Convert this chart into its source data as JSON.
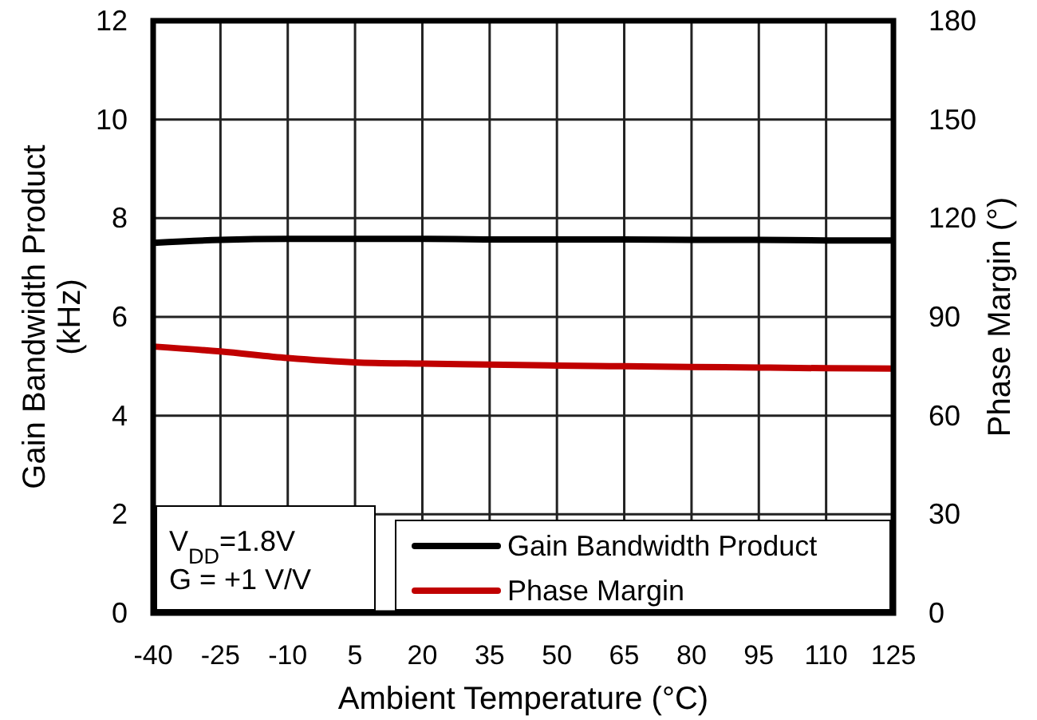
{
  "chart_data": {
    "type": "line",
    "xlabel": "Ambient Temperature (°C)",
    "ylabel": "Gain Bandwidth Product\n(kHz)",
    "y2label": "Phase Margin (°)",
    "x": [
      -40,
      -25,
      -10,
      5,
      20,
      35,
      50,
      65,
      80,
      95,
      110,
      125
    ],
    "series": [
      {
        "name": "Gain Bandwidth Product",
        "color": "#000000",
        "values": [
          7.5,
          7.56,
          7.58,
          7.58,
          7.58,
          7.57,
          7.57,
          7.57,
          7.56,
          7.56,
          7.55,
          7.55
        ]
      },
      {
        "name": "Phase Margin",
        "color": "#c00000",
        "axis": "y2",
        "values": [
          81,
          79.5,
          77.5,
          76.2,
          75.8,
          75.5,
          75.2,
          75,
          74.8,
          74.6,
          74.4,
          74.3
        ]
      }
    ],
    "xlim": [
      -40,
      125
    ],
    "xticks": [
      -40,
      -25,
      -10,
      5,
      20,
      35,
      50,
      65,
      80,
      95,
      110,
      125
    ],
    "ylim": [
      0,
      12
    ],
    "yticks": [
      0,
      2,
      4,
      6,
      8,
      10,
      12
    ],
    "y2lim": [
      0,
      180
    ],
    "y2ticks": [
      0,
      30,
      60,
      90,
      120,
      150,
      180
    ],
    "annotations": [
      "V$_{DD}$=1.8V",
      "G = +1 V/V"
    ],
    "grid": true,
    "legend": "bottom right",
    "marker": "none",
    "line_style": "solid"
  }
}
